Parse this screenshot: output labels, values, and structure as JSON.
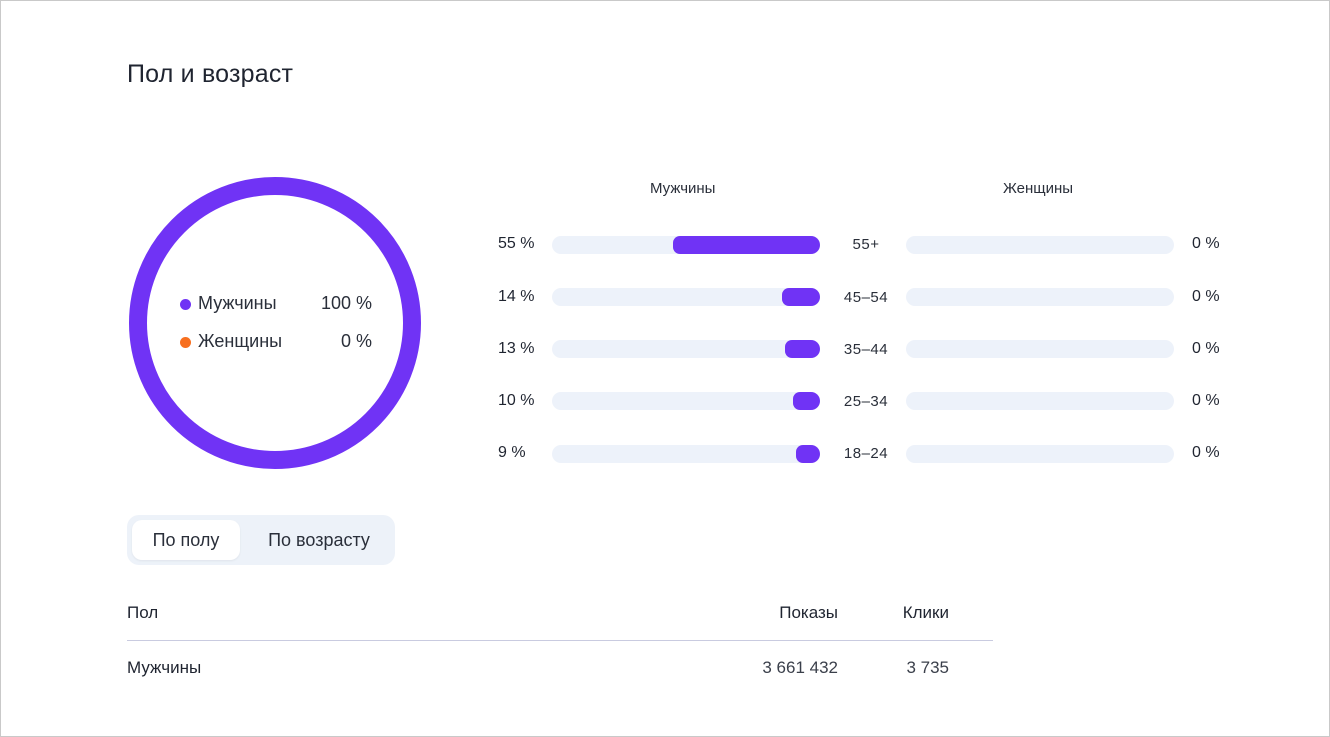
{
  "title": "Пол и возраст",
  "colors": {
    "accent": "#7033f5",
    "female": "#f76f1f",
    "track": "#edf2fa"
  },
  "donut": {
    "legend": [
      {
        "name": "Мужчины",
        "value_label": "100 %",
        "value": 100,
        "color": "#7033f5"
      },
      {
        "name": "Женщины",
        "value_label": "0 %",
        "value": 0,
        "color": "#f76f1f"
      }
    ]
  },
  "chart_data": {
    "type": "bar",
    "orientation": "horizontal",
    "categories": [
      "55+",
      "45–54",
      "35–44",
      "25–34",
      "18–24"
    ],
    "series": [
      {
        "name": "Мужчины",
        "values": [
          55,
          14,
          13,
          10,
          9
        ],
        "labels": [
          "55 %",
          "14 %",
          "13 %",
          "10 %",
          "9 %"
        ]
      },
      {
        "name": "Женщины",
        "values": [
          0,
          0,
          0,
          0,
          0
        ],
        "labels": [
          "0 %",
          "0 %",
          "0 %",
          "0 %",
          "0 %"
        ]
      }
    ],
    "xlim": [
      0,
      100
    ]
  },
  "toggle": {
    "options": [
      "По полу",
      "По возрасту"
    ],
    "selected": "По полу"
  },
  "table": {
    "headers": [
      "Пол",
      "Показы",
      "Клики"
    ],
    "rows": [
      [
        "Мужчины",
        "3 661 432",
        "3 735"
      ]
    ]
  }
}
